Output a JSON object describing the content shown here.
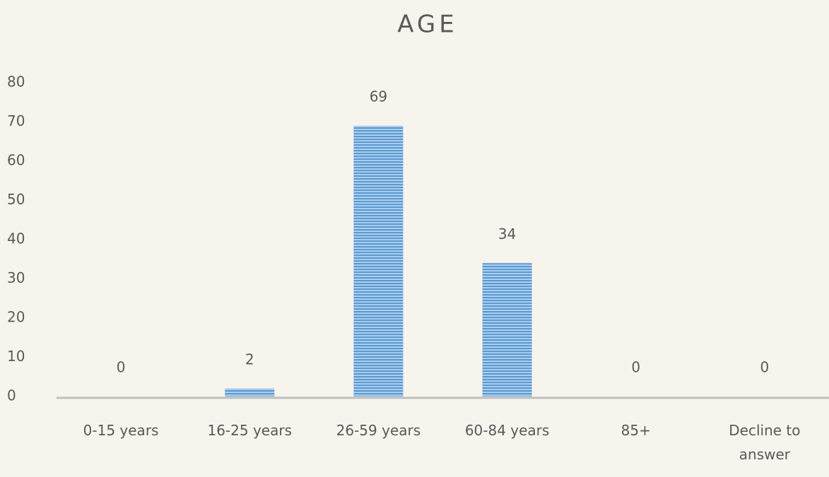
{
  "chart_data": {
    "type": "bar",
    "title": "AGE",
    "categories": [
      "0-15 years",
      "16-25 years",
      "26-59 years",
      "60-84 years",
      "85+",
      "Decline to answer"
    ],
    "values": [
      0,
      2,
      69,
      34,
      0,
      0
    ],
    "color": "#5b9bd5",
    "ylim": [
      0,
      80
    ],
    "yticks": [
      0,
      10,
      20,
      30,
      40,
      50,
      60,
      70,
      80
    ],
    "grid": false
  }
}
